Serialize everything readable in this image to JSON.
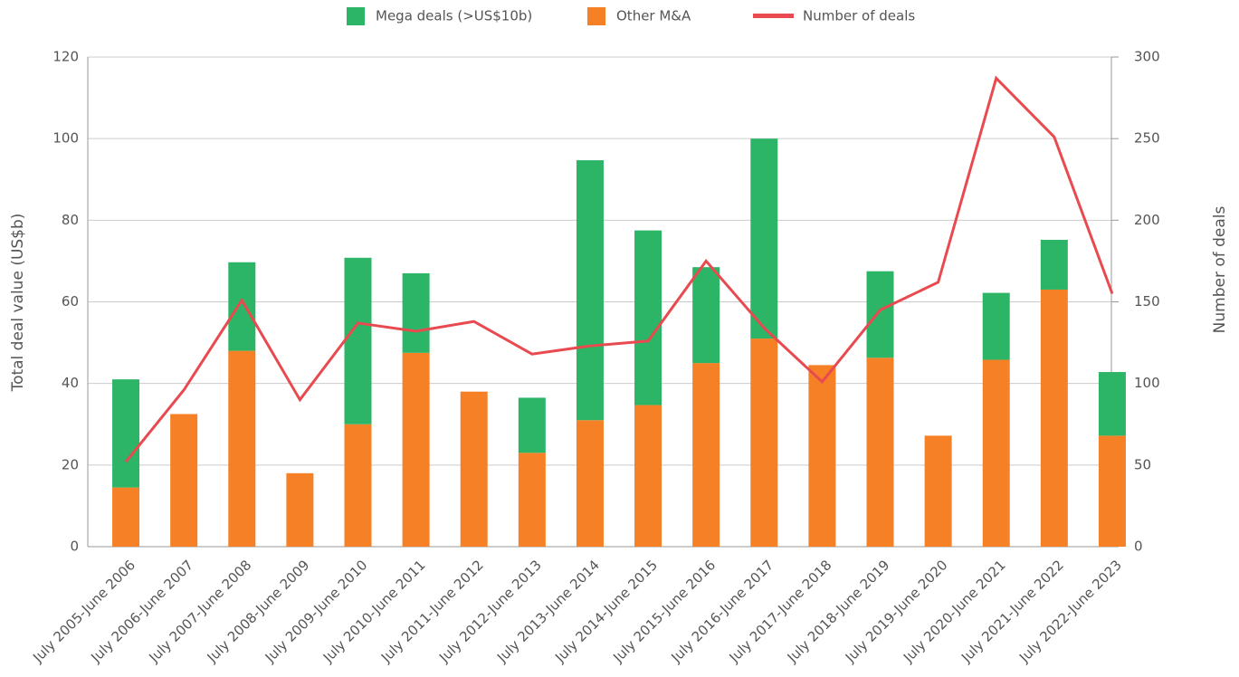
{
  "chart_data": {
    "type": "bar",
    "categories": [
      "July 2005-June 2006",
      "July 2006-June 2007",
      "July 2007-June 2008",
      "July 2008-June 2009",
      "July 2009-June 2010",
      "July 2010-June 2011",
      "July 2011-June 2012",
      "July 2012-June 2013",
      "July 2013-June 2014",
      "July 2014-June 2015",
      "July 2015-June 2016",
      "July 2016-June 2017",
      "July 2017-June 2018",
      "July 2018-June 2019",
      "July 2019-June 2020",
      "July 2020-June 2021",
      "July 2021-June 2022",
      "July 2022-June 2023"
    ],
    "series": [
      {
        "name": "Mega deals (>US$10b)",
        "color": "#2db567",
        "stacked": true,
        "values": [
          26.5,
          0,
          21.7,
          0,
          40.8,
          19.5,
          0,
          13.5,
          63.7,
          42.8,
          23.5,
          49,
          0,
          21.2,
          0,
          16.4,
          12.2,
          15.6
        ]
      },
      {
        "name": "Other M&A",
        "color": "#f58025",
        "stacked": true,
        "values": [
          14.5,
          32.5,
          48,
          18,
          30,
          47.5,
          38,
          23,
          31,
          34.7,
          45,
          51,
          44.5,
          46.3,
          27.2,
          45.8,
          63,
          27.2
        ]
      },
      {
        "name": "Number of deals",
        "color": "#e84a4f",
        "type": "line",
        "axis": "y2",
        "values": [
          52,
          96,
          151,
          90,
          137,
          132,
          138,
          118,
          123,
          126,
          175,
          134,
          101,
          145,
          162,
          287,
          251,
          155
        ]
      }
    ],
    "y_label": "Total deal value  (US$b)",
    "y2_label": "Number of deals",
    "ylim": [
      0,
      120
    ],
    "yticks": [
      0,
      20,
      40,
      60,
      80,
      100,
      120
    ],
    "y2lim": [
      0,
      300
    ],
    "y2ticks": [
      0,
      50,
      100,
      150,
      200,
      250,
      300
    ],
    "grid": true,
    "legend": "top"
  }
}
